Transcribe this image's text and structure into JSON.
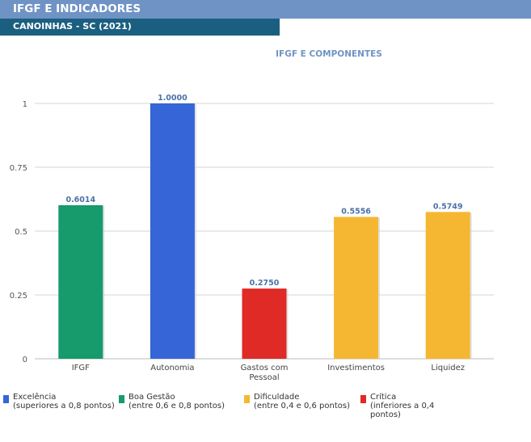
{
  "header": {
    "title": "IFGF E INDICADORES",
    "subtitle": "CANOINHAS - SC (2021)"
  },
  "colors": {
    "header_bg": "#6f93c4",
    "subheader_bg": "#1b5f80",
    "title_text": "#6f93c4",
    "value_text": "#4a72a8",
    "excelencia": "#3565d6",
    "boa_gestao": "#179a6c",
    "dificuldade": "#f5b731",
    "critica": "#df2a26"
  },
  "chart_data": {
    "type": "bar",
    "title": "IFGF E COMPONENTES",
    "categories": [
      "IFGF",
      "Autonomia",
      "Gastos com Pessoal",
      "Investimentos",
      "Liquidez"
    ],
    "category_lines": [
      [
        "IFGF"
      ],
      [
        "Autonomia"
      ],
      [
        "Gastos com",
        "Pessoal"
      ],
      [
        "Investimentos"
      ],
      [
        "Liquidez"
      ]
    ],
    "values": [
      0.6014,
      1.0,
      0.275,
      0.5556,
      0.5749
    ],
    "value_labels": [
      "0.6014",
      "1.0000",
      "0.2750",
      "0.5556",
      "0.5749"
    ],
    "bar_colors": [
      "#179a6c",
      "#3565d6",
      "#df2a26",
      "#f5b731",
      "#f5b731"
    ],
    "yticks": [
      0,
      0.25,
      0.5,
      0.75,
      1
    ],
    "ytick_labels": [
      "0",
      "0.25",
      "0.5",
      "0.75",
      "1"
    ],
    "ylim": [
      0,
      1
    ],
    "grid": true,
    "legend_position": "bottom"
  },
  "legend": [
    {
      "label": "Excelência",
      "desc": "(superiores a 0,8 pontos)",
      "color": "#3565d6"
    },
    {
      "label": "Boa Gestão",
      "desc": "(entre 0,6 e 0,8 pontos)",
      "color": "#179a6c"
    },
    {
      "label": "Dificuldade",
      "desc": "(entre 0,4 e 0,6 pontos)",
      "color": "#f5b731"
    },
    {
      "label": "Crítica",
      "desc": "(inferiores a 0,4 pontos)",
      "color": "#df2a26"
    }
  ]
}
